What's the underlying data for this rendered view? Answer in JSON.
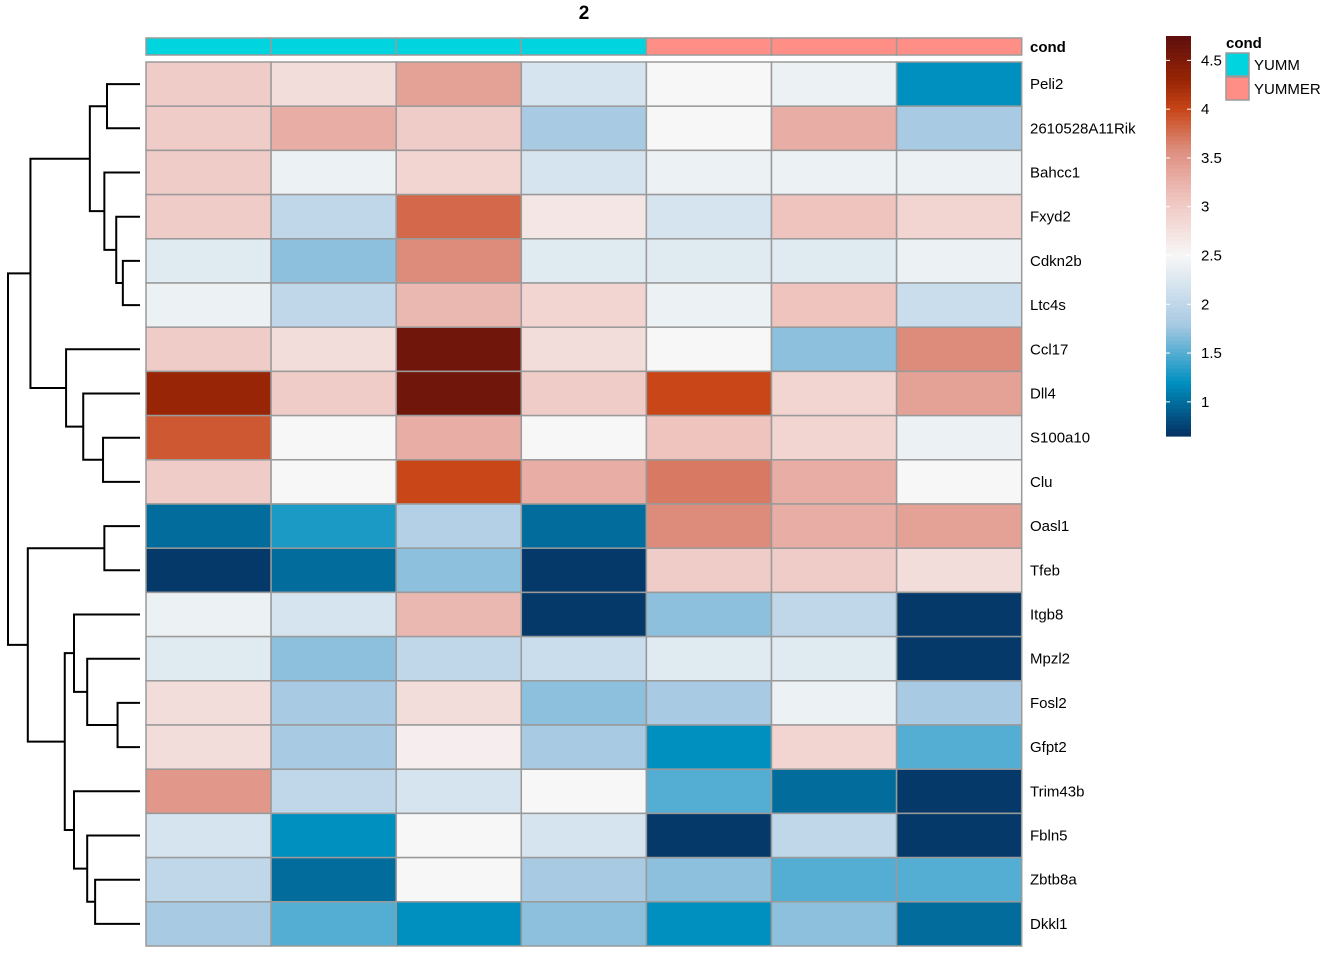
{
  "chart_data": {
    "type": "heatmap",
    "title": "2",
    "annotation": {
      "label": "cond",
      "values": [
        "YUMM",
        "YUMM",
        "YUMM",
        "YUMM",
        "YUMMER",
        "YUMMER",
        "YUMMER"
      ],
      "legend_title": "cond",
      "legend": [
        {
          "name": "YUMM",
          "color": "#00D4DE"
        },
        {
          "name": "YUMMER",
          "color": "#FF8F86"
        }
      ]
    },
    "rows": [
      "Peli2",
      "2610528A11Rik",
      "Bahcc1",
      "Fxyd2",
      "Cdkn2b",
      "Ltc4s",
      "Ccl17",
      "Dll4",
      "S100a10",
      "Clu",
      "Oasl1",
      "Tfeb",
      "Itgb8",
      "Mpzl2",
      "Fosl2",
      "Gfpt2",
      "Trim43b",
      "Fbln5",
      "Zbtb8a",
      "Dkkl1"
    ],
    "values": [
      [
        3.0,
        2.8,
        3.4,
        2.2,
        2.5,
        2.4,
        1.2
      ],
      [
        3.0,
        3.3,
        3.0,
        1.8,
        2.5,
        3.3,
        1.8
      ],
      [
        3.0,
        2.4,
        2.9,
        2.2,
        2.4,
        2.4,
        2.4
      ],
      [
        3.0,
        2.0,
        3.8,
        2.7,
        2.2,
        3.1,
        2.9
      ],
      [
        2.3,
        1.7,
        3.6,
        2.3,
        2.3,
        2.3,
        2.4
      ],
      [
        2.4,
        2.0,
        3.2,
        2.9,
        2.4,
        3.1,
        2.1
      ],
      [
        3.0,
        2.8,
        4.6,
        2.8,
        2.5,
        1.7,
        3.6
      ],
      [
        4.3,
        3.0,
        4.6,
        3.0,
        4.0,
        2.9,
        3.4
      ],
      [
        3.9,
        2.5,
        3.3,
        2.5,
        3.1,
        2.9,
        2.4
      ],
      [
        3.0,
        2.5,
        4.0,
        3.3,
        3.7,
        3.3,
        2.5
      ],
      [
        1.0,
        1.3,
        1.9,
        1.0,
        3.6,
        3.3,
        3.4
      ],
      [
        0.7,
        1.0,
        1.7,
        0.7,
        3.0,
        3.0,
        2.8
      ],
      [
        2.4,
        2.2,
        3.2,
        0.7,
        1.7,
        2.0,
        0.7
      ],
      [
        2.3,
        1.7,
        2.0,
        2.1,
        2.3,
        2.3,
        0.7
      ],
      [
        2.8,
        1.8,
        2.8,
        1.7,
        1.8,
        2.4,
        1.8
      ],
      [
        2.8,
        1.8,
        2.6,
        1.8,
        1.2,
        2.9,
        1.5
      ],
      [
        3.5,
        2.0,
        2.2,
        2.5,
        1.5,
        1.0,
        0.7
      ],
      [
        2.2,
        1.2,
        2.5,
        2.2,
        0.7,
        2.0,
        0.7
      ],
      [
        2.0,
        1.0,
        2.5,
        1.8,
        1.7,
        1.5,
        1.5
      ],
      [
        1.8,
        1.5,
        1.2,
        1.7,
        1.2,
        1.7,
        1.0
      ]
    ],
    "color_scale": {
      "min": 0.65,
      "max": 4.75,
      "stops": [
        {
          "v": 0.65,
          "c": "#053061"
        },
        {
          "v": 1.2,
          "c": "#0090C0"
        },
        {
          "v": 1.8,
          "c": "#A8CAE3"
        },
        {
          "v": 2.5,
          "c": "#F7F7F7"
        },
        {
          "v": 3.1,
          "c": "#EFC3BE"
        },
        {
          "v": 3.6,
          "c": "#DD8C7C"
        },
        {
          "v": 4.0,
          "c": "#C84618"
        },
        {
          "v": 4.3,
          "c": "#982505"
        },
        {
          "v": 4.75,
          "c": "#5E0F0E"
        }
      ],
      "ticks": [
        1,
        1.5,
        2,
        2.5,
        3,
        3.5,
        4,
        4.5
      ]
    },
    "row_dendrogram": [
      {
        "a": 0,
        "b": 1,
        "h": 0.25
      },
      {
        "a": 4,
        "b": 5,
        "h": 0.13
      },
      {
        "a": 3,
        "b": 21,
        "h": 0.18
      },
      {
        "a": 2,
        "b": 22,
        "h": 0.27
      },
      {
        "a": 20,
        "b": 23,
        "h": 0.38
      },
      {
        "a": 8,
        "b": 9,
        "h": 0.28
      },
      {
        "a": 7,
        "b": 25,
        "h": 0.43
      },
      {
        "a": 6,
        "b": 26,
        "h": 0.56
      },
      {
        "a": 24,
        "b": 27,
        "h": 0.83
      },
      {
        "a": 10,
        "b": 11,
        "h": 0.27
      },
      {
        "a": 14,
        "b": 15,
        "h": 0.17
      },
      {
        "a": 13,
        "b": 30,
        "h": 0.4
      },
      {
        "a": 12,
        "b": 31,
        "h": 0.5
      },
      {
        "a": 18,
        "b": 19,
        "h": 0.34
      },
      {
        "a": 17,
        "b": 33,
        "h": 0.4
      },
      {
        "a": 16,
        "b": 34,
        "h": 0.5
      },
      {
        "a": 32,
        "b": 35,
        "h": 0.57
      },
      {
        "a": 29,
        "b": 36,
        "h": 0.85
      },
      {
        "a": 28,
        "b": 37,
        "h": 1.0
      }
    ]
  }
}
